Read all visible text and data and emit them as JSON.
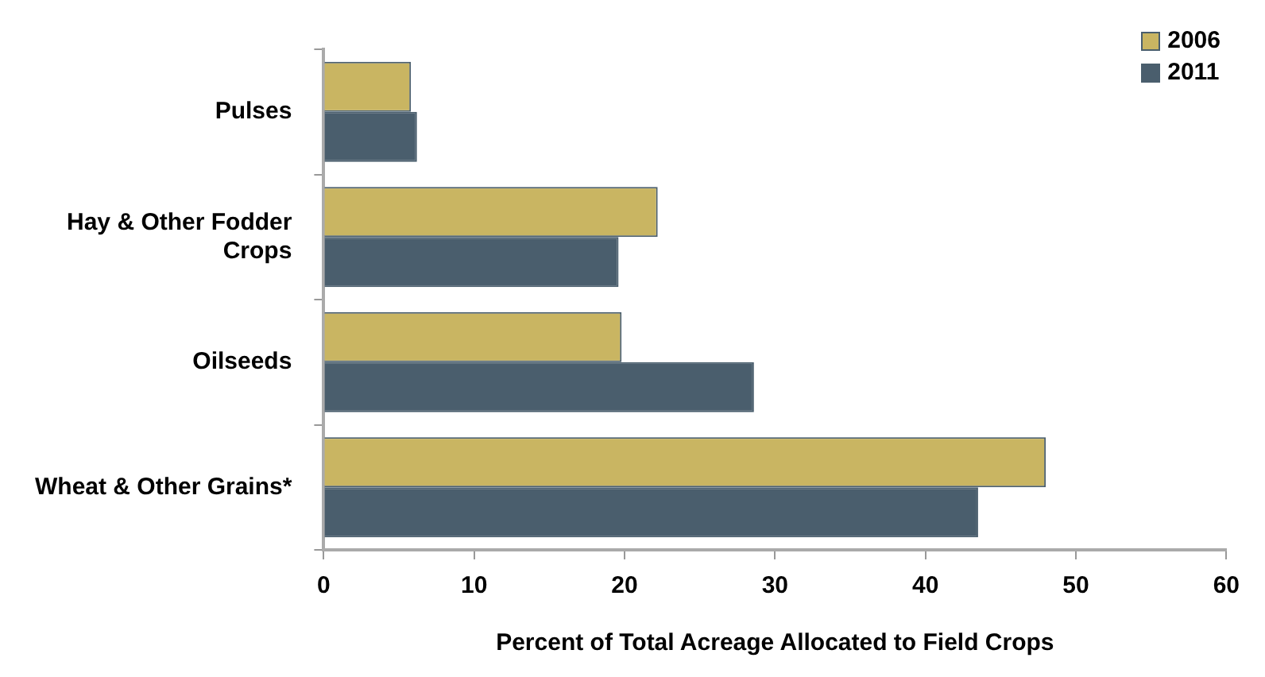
{
  "chart_data": {
    "type": "bar",
    "orientation": "horizontal",
    "xlabel": "Percent of Total Acreage Allocated to Field Crops",
    "categories": [
      "Pulses",
      "Hay & Other Fodder Crops",
      "Oilseeds",
      "Wheat & Other Grains*"
    ],
    "series": [
      {
        "name": "2006",
        "color": "#c9b562",
        "values": [
          5.8,
          22.2,
          19.8,
          48.0
        ]
      },
      {
        "name": "2011",
        "color": "#4a5e6d",
        "values": [
          6.2,
          19.6,
          28.6,
          43.5
        ]
      }
    ],
    "xlim": [
      0,
      60
    ],
    "xticks": [
      0,
      10,
      20,
      30,
      40,
      50,
      60
    ],
    "grid": false,
    "legend": "top right"
  }
}
